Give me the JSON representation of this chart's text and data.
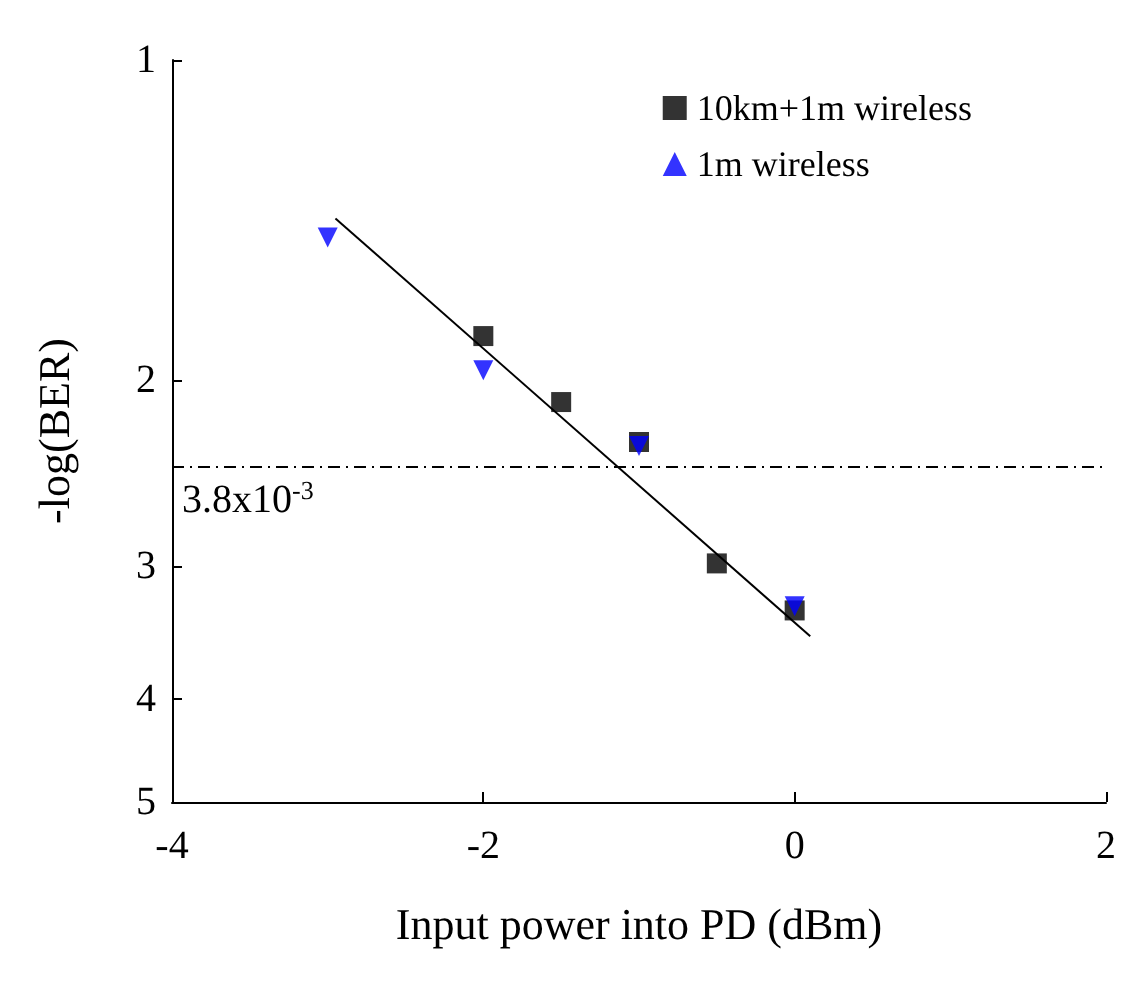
{
  "chart_data": {
    "type": "scatter",
    "xlabel": "Input power into PD (dBm)",
    "ylabel": "-log(BER)",
    "xlim": [
      -4,
      2
    ],
    "xticks": [
      -4,
      -2,
      0,
      2
    ],
    "ylim": [
      5,
      1
    ],
    "yticks": [
      1,
      2,
      3,
      4,
      5
    ],
    "log": "y",
    "grid": false,
    "legend": "top right",
    "series": [
      {
        "name": "10km+1m wireless",
        "color": "#000000",
        "marker": "square",
        "x": [
          -2,
          -1.5,
          -1,
          -0.5,
          0
        ],
        "values": [
          1.82,
          2.1,
          2.29,
          2.98,
          3.3
        ]
      },
      {
        "name": "1m wireless",
        "color": "#0000ff",
        "marker": "triangle",
        "x": [
          -3,
          -2,
          -1,
          0
        ],
        "values": [
          1.47,
          1.96,
          2.31,
          3.27
        ]
      },
      {
        "type": "line",
        "color": "#000000",
        "marker": "none",
        "line_style": "solid",
        "x": [
          -2.95,
          0.1
        ],
        "values": [
          1.41,
          3.49
        ]
      }
    ],
    "ref_lines": [
      {
        "axis": "y",
        "value": 2.42,
        "label": "3.8x10$^{-3}$",
        "line_style": "dashed",
        "color": "#000000"
      }
    ]
  }
}
